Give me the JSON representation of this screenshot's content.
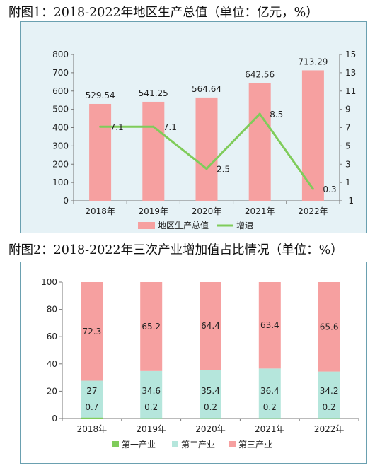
{
  "chart_data": [
    {
      "type": "bar",
      "title": "附图1：2018-2022年地区生产总值（单位：亿元，%）",
      "categories": [
        "2018年",
        "2019年",
        "2020年",
        "2021年",
        "2022年"
      ],
      "series": [
        {
          "name": "地区生产总值",
          "type": "bar",
          "axis": "left",
          "values": [
            529.54,
            541.25,
            564.64,
            642.56,
            713.29
          ],
          "color": "#f6a0a0"
        },
        {
          "name": "增速",
          "type": "line",
          "axis": "right",
          "values": [
            7.1,
            7.1,
            2.5,
            8.5,
            0.3
          ],
          "color": "#7fcc5a"
        }
      ],
      "y_left": {
        "ylim": [
          0,
          800
        ],
        "ticks": [
          0,
          100,
          200,
          300,
          400,
          500,
          600,
          700,
          800
        ]
      },
      "y_right": {
        "ylim": [
          -1,
          15
        ],
        "ticks": [
          -1,
          1,
          3,
          5,
          7,
          9,
          11,
          13,
          15
        ]
      },
      "legend": "bottom",
      "grid": false
    },
    {
      "type": "bar",
      "stacked": true,
      "title": "附图2：2018-2022年三次产业增加值占比情况（单位：%）",
      "categories": [
        "2018年",
        "2019年",
        "2020年",
        "2021年",
        "2022年"
      ],
      "series": [
        {
          "name": "第一产业",
          "values": [
            0.7,
            0.2,
            0.2,
            0.2,
            0.2
          ],
          "color": "#7fcc5a"
        },
        {
          "name": "第二产业",
          "values": [
            27,
            34.6,
            35.4,
            36.4,
            34.2
          ],
          "color": "#b5e6dc"
        },
        {
          "name": "第三产业",
          "values": [
            72.3,
            65.2,
            64.4,
            63.4,
            65.6
          ],
          "color": "#f6a0a0"
        }
      ],
      "ylim": [
        0,
        100
      ],
      "yticks": [
        0,
        20,
        40,
        60,
        80,
        100
      ],
      "legend": "bottom",
      "grid": false
    }
  ]
}
